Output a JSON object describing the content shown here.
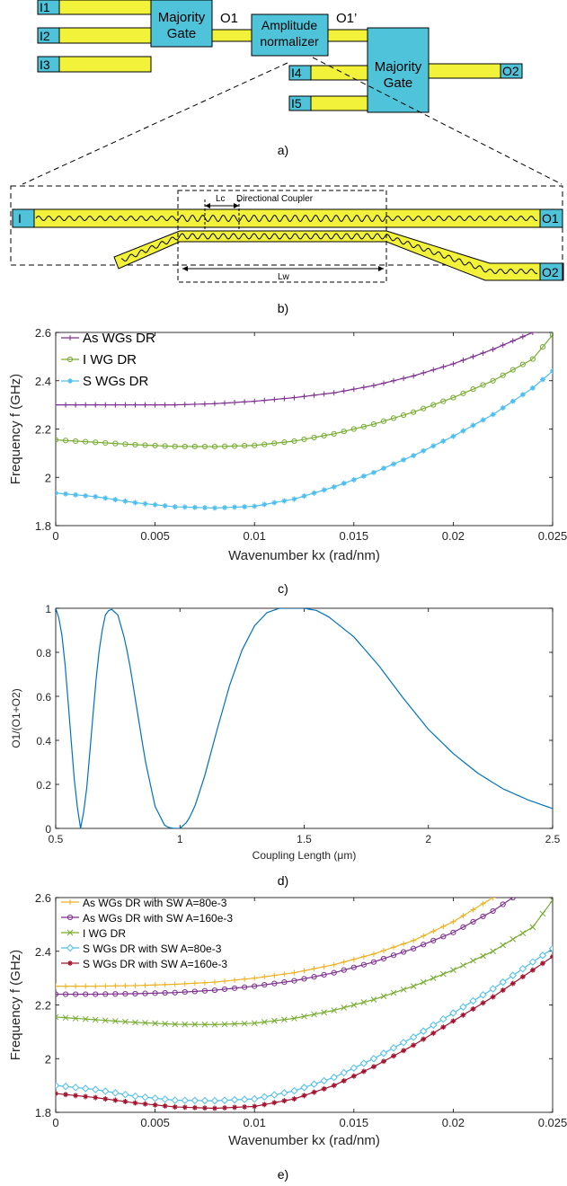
{
  "panel_a": {
    "inputs": [
      "I1",
      "I2",
      "I3",
      "I4",
      "I5"
    ],
    "gate1_line1": "Majority",
    "gate1_line2": "Gate",
    "gate2_line1": "Majority",
    "gate2_line2": "Gate",
    "normalizer_line1": "Amplitude",
    "normalizer_line2": "normalizer",
    "o1": "O1",
    "o1_prime": "O1’",
    "o2": "O2",
    "caption": "a)",
    "colors": {
      "waveguide": "#f2f23a",
      "gate": "#4fc3d9"
    }
  },
  "panel_b": {
    "input_label": "I",
    "out1_label": "O1",
    "out2_label": "O2",
    "lc_label": "Lc",
    "coupler_label": "Directional Coupler",
    "lw_label": "Lw",
    "caption": "b)"
  },
  "panel_c": {
    "caption": "c)"
  },
  "panel_d": {
    "caption": "d)"
  },
  "panel_e": {
    "caption": "e)"
  },
  "chart_data": [
    {
      "type": "line",
      "id": "c",
      "xlabel": "Wavenumber kx (rad/nm)",
      "ylabel": "Frequency f (GHz)",
      "xlim": [
        0,
        0.025
      ],
      "ylim": [
        1.8,
        2.6
      ],
      "xticks": [
        "0",
        "0.005",
        "0.01",
        "0.015",
        "0.02",
        "0.025"
      ],
      "yticks": [
        "1.8",
        "2",
        "2.2",
        "2.4",
        "2.6"
      ],
      "legend_position": "top-left",
      "series": [
        {
          "name": "As WGs DR",
          "color": "#7e2f8e",
          "marker": "plus",
          "x": [
            0,
            0.003,
            0.006,
            0.008,
            0.01,
            0.012,
            0.014,
            0.016,
            0.018,
            0.02,
            0.022,
            0.024
          ],
          "y": [
            2.3,
            2.3,
            2.3,
            2.305,
            2.315,
            2.33,
            2.35,
            2.38,
            2.42,
            2.47,
            2.53,
            2.6
          ]
        },
        {
          "name": "I WG DR",
          "color": "#77ac30",
          "marker": "circle",
          "x": [
            0,
            0.002,
            0.004,
            0.006,
            0.008,
            0.01,
            0.012,
            0.014,
            0.016,
            0.018,
            0.02,
            0.022,
            0.024,
            0.025
          ],
          "y": [
            2.155,
            2.145,
            2.135,
            2.128,
            2.127,
            2.132,
            2.15,
            2.18,
            2.22,
            2.27,
            2.33,
            2.4,
            2.49,
            2.59
          ]
        },
        {
          "name": "S WGs DR",
          "color": "#4dbeee",
          "marker": "star",
          "x": [
            0,
            0.002,
            0.004,
            0.006,
            0.008,
            0.01,
            0.012,
            0.014,
            0.016,
            0.018,
            0.02,
            0.022,
            0.024,
            0.025
          ],
          "y": [
            1.935,
            1.92,
            1.895,
            1.878,
            1.873,
            1.88,
            1.91,
            1.96,
            2.02,
            2.09,
            2.17,
            2.26,
            2.37,
            2.44
          ]
        }
      ]
    },
    {
      "type": "line",
      "id": "d",
      "xlabel": "Coupling Length (μm)",
      "ylabel": "O1/(O1+O2)",
      "xlim": [
        0.5,
        2.5
      ],
      "ylim": [
        0,
        1
      ],
      "xticks": [
        "0.5",
        "1",
        "1.5",
        "2",
        "2.5"
      ],
      "yticks": [
        "0",
        "0.2",
        "0.4",
        "0.6",
        "0.8",
        "1"
      ],
      "series": [
        {
          "color": "#0072bd",
          "x": [
            0.5,
            0.52,
            0.54,
            0.56,
            0.58,
            0.6,
            0.62,
            0.64,
            0.66,
            0.68,
            0.7,
            0.72,
            0.75,
            0.78,
            0.8,
            0.83,
            0.86,
            0.9,
            0.94,
            0.97,
            1.0,
            1.03,
            1.06,
            1.1,
            1.15,
            1.2,
            1.25,
            1.3,
            1.35,
            1.4,
            1.45,
            1.5,
            1.55,
            1.6,
            1.7,
            1.8,
            1.9,
            2.0,
            2.1,
            2.2,
            2.3,
            2.4,
            2.5
          ],
          "y": [
            1.0,
            0.93,
            0.72,
            0.43,
            0.15,
            0.0,
            0.12,
            0.38,
            0.65,
            0.86,
            0.97,
            1.0,
            0.97,
            0.85,
            0.73,
            0.52,
            0.31,
            0.1,
            0.01,
            0.0,
            0.0,
            0.03,
            0.1,
            0.24,
            0.45,
            0.65,
            0.81,
            0.92,
            0.98,
            1.0,
            1.0,
            1.0,
            0.99,
            0.96,
            0.87,
            0.74,
            0.59,
            0.45,
            0.34,
            0.25,
            0.18,
            0.13,
            0.09
          ]
        }
      ]
    },
    {
      "type": "line",
      "id": "e",
      "xlabel": "Wavenumber kx (rad/nm)",
      "ylabel": "Frequency f (GHz)",
      "xlim": [
        0,
        0.025
      ],
      "ylim": [
        1.8,
        2.6
      ],
      "xticks": [
        "0",
        "0.005",
        "0.01",
        "0.015",
        "0.02",
        "0.025"
      ],
      "yticks": [
        "1.8",
        "2",
        "2.2",
        "2.4",
        "2.6"
      ],
      "legend_position": "top-left",
      "series": [
        {
          "name": "As WGs DR with SW A=80e-3",
          "color": "#edb120",
          "marker": "plus",
          "x": [
            0,
            0.002,
            0.004,
            0.006,
            0.008,
            0.01,
            0.012,
            0.014,
            0.016,
            0.018,
            0.02,
            0.022
          ],
          "y": [
            2.27,
            2.27,
            2.272,
            2.277,
            2.285,
            2.3,
            2.32,
            2.35,
            2.39,
            2.44,
            2.51,
            2.6
          ]
        },
        {
          "name": "As WGs DR with SW A=160e-3",
          "color": "#7e2f8e",
          "marker": "circle",
          "x": [
            0,
            0.002,
            0.004,
            0.006,
            0.008,
            0.01,
            0.012,
            0.014,
            0.016,
            0.018,
            0.02,
            0.022,
            0.023
          ],
          "y": [
            2.24,
            2.24,
            2.242,
            2.246,
            2.255,
            2.27,
            2.29,
            2.32,
            2.36,
            2.41,
            2.47,
            2.55,
            2.6
          ]
        },
        {
          "name": "I WG DR",
          "color": "#77ac30",
          "marker": "x",
          "x": [
            0,
            0.002,
            0.004,
            0.006,
            0.008,
            0.01,
            0.012,
            0.014,
            0.016,
            0.018,
            0.02,
            0.022,
            0.024,
            0.025
          ],
          "y": [
            2.155,
            2.145,
            2.135,
            2.128,
            2.127,
            2.132,
            2.15,
            2.18,
            2.22,
            2.27,
            2.33,
            2.4,
            2.49,
            2.59
          ]
        },
        {
          "name": "S WGs DR with SW A=80e-3",
          "color": "#4dbeee",
          "marker": "diamond",
          "x": [
            0,
            0.002,
            0.004,
            0.006,
            0.008,
            0.01,
            0.012,
            0.014,
            0.016,
            0.018,
            0.02,
            0.022,
            0.024,
            0.025
          ],
          "y": [
            1.9,
            1.885,
            1.86,
            1.845,
            1.843,
            1.85,
            1.88,
            1.93,
            2.0,
            2.08,
            2.17,
            2.26,
            2.36,
            2.41
          ]
        },
        {
          "name": "S WGs DR with SW A=160e-3",
          "color": "#a2142f",
          "marker": "star",
          "x": [
            0,
            0.002,
            0.004,
            0.006,
            0.008,
            0.01,
            0.012,
            0.014,
            0.016,
            0.018,
            0.02,
            0.022,
            0.024,
            0.025
          ],
          "y": [
            1.87,
            1.855,
            1.835,
            1.82,
            1.815,
            1.822,
            1.85,
            1.9,
            1.97,
            2.05,
            2.14,
            2.23,
            2.33,
            2.38
          ]
        }
      ]
    }
  ]
}
